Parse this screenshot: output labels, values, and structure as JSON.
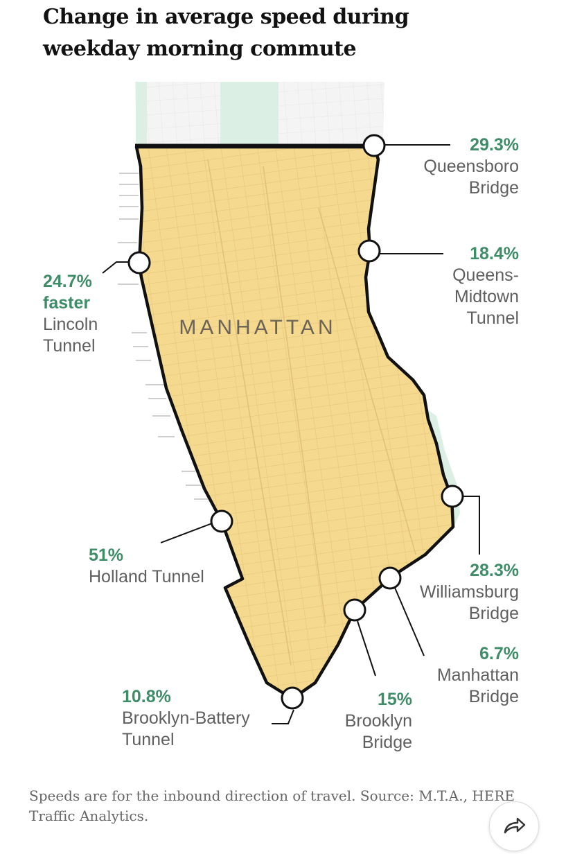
{
  "title": "Change in average speed during weekday morning commute",
  "map_label": "MANHATTAN",
  "note": "Speeds are for the inbound direction of travel. Source: M.T.A., HERE Traffic Analytics.",
  "colors": {
    "zone_fill": "#f4d98f",
    "park": "#dcefe4",
    "accent": "#3f8d68",
    "outline": "#111111"
  },
  "crossings": [
    {
      "id": "queensboro",
      "pct": "29.3%",
      "extra": "",
      "name_lines": [
        "Queensboro",
        "Bridge"
      ]
    },
    {
      "id": "queens-midtown",
      "pct": "18.4%",
      "extra": "",
      "name_lines": [
        "Queens-",
        "Midtown",
        "Tunnel"
      ]
    },
    {
      "id": "lincoln",
      "pct": "24.7%",
      "extra": "faster",
      "name_lines": [
        "Lincoln",
        "Tunnel"
      ]
    },
    {
      "id": "holland",
      "pct": "51%",
      "extra": "",
      "name_lines": [
        "Holland Tunnel"
      ]
    },
    {
      "id": "williamsburg",
      "pct": "28.3%",
      "extra": "",
      "name_lines": [
        "Williamsburg",
        "Bridge"
      ]
    },
    {
      "id": "manhattan",
      "pct": "6.7%",
      "extra": "",
      "name_lines": [
        "Manhattan",
        "Bridge"
      ]
    },
    {
      "id": "brooklyn-battery",
      "pct": "10.8%",
      "extra": "",
      "name_lines": [
        "Brooklyn-Battery",
        "Tunnel"
      ]
    },
    {
      "id": "brooklyn",
      "pct": "15%",
      "extra": "",
      "name_lines": [
        "Brooklyn",
        "Bridge"
      ]
    }
  ],
  "share_icon": "share-arrow-icon"
}
